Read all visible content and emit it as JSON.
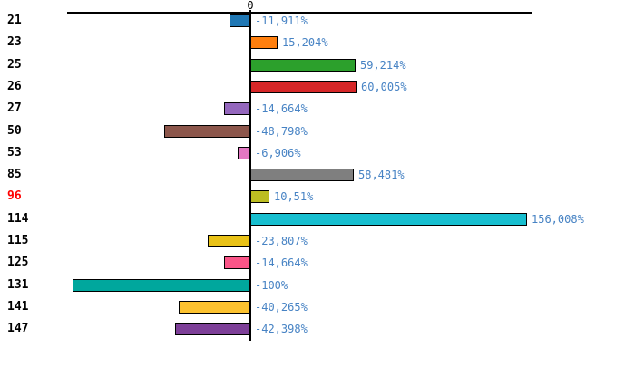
{
  "chart_data": {
    "type": "bar",
    "orientation": "horizontal",
    "title": "",
    "xlabel": "",
    "ylabel": "",
    "axis_zero_label": "0",
    "xlim": [
      -103,
      159
    ],
    "grid": false,
    "legend": false,
    "categories": [
      "21",
      "23",
      "25",
      "26",
      "27",
      "50",
      "53",
      "85",
      "96",
      "114",
      "115",
      "125",
      "131",
      "141",
      "147"
    ],
    "values": [
      -11.911,
      15.204,
      59.214,
      60.005,
      -14.664,
      -48.798,
      -6.906,
      58.481,
      10.51,
      156.008,
      -23.807,
      -14.664,
      -100,
      -40.265,
      -42.398
    ],
    "value_labels": [
      "-11,911%",
      "15,204%",
      "59,214%",
      "60,005%",
      "-14,664%",
      "-48,798%",
      "-6,906%",
      "58,481%",
      "10,51%",
      "156,008%",
      "-23,807%",
      "-14,664%",
      "-100%",
      "-40,265%",
      "-42,398%"
    ],
    "bar_colors": [
      "#1f77b4",
      "#ff7f0e",
      "#2ca02c",
      "#d62728",
      "#9467bd",
      "#8c564b",
      "#e377c2",
      "#7f7f7f",
      "#bcbd22",
      "#17becf",
      "#e9c217",
      "#fa5588",
      "#00a79d",
      "#fcc22f",
      "#7d3f98"
    ],
    "category_label_colors": [
      "#000000",
      "#000000",
      "#000000",
      "#000000",
      "#000000",
      "#000000",
      "#000000",
      "#000000",
      "#ff0000",
      "#000000",
      "#000000",
      "#000000",
      "#000000",
      "#000000",
      "#000000"
    ],
    "highlighted_category": "96",
    "highlight_color": "#ff0000",
    "value_label_color": "#4783c4",
    "axis_color": "#000000"
  }
}
